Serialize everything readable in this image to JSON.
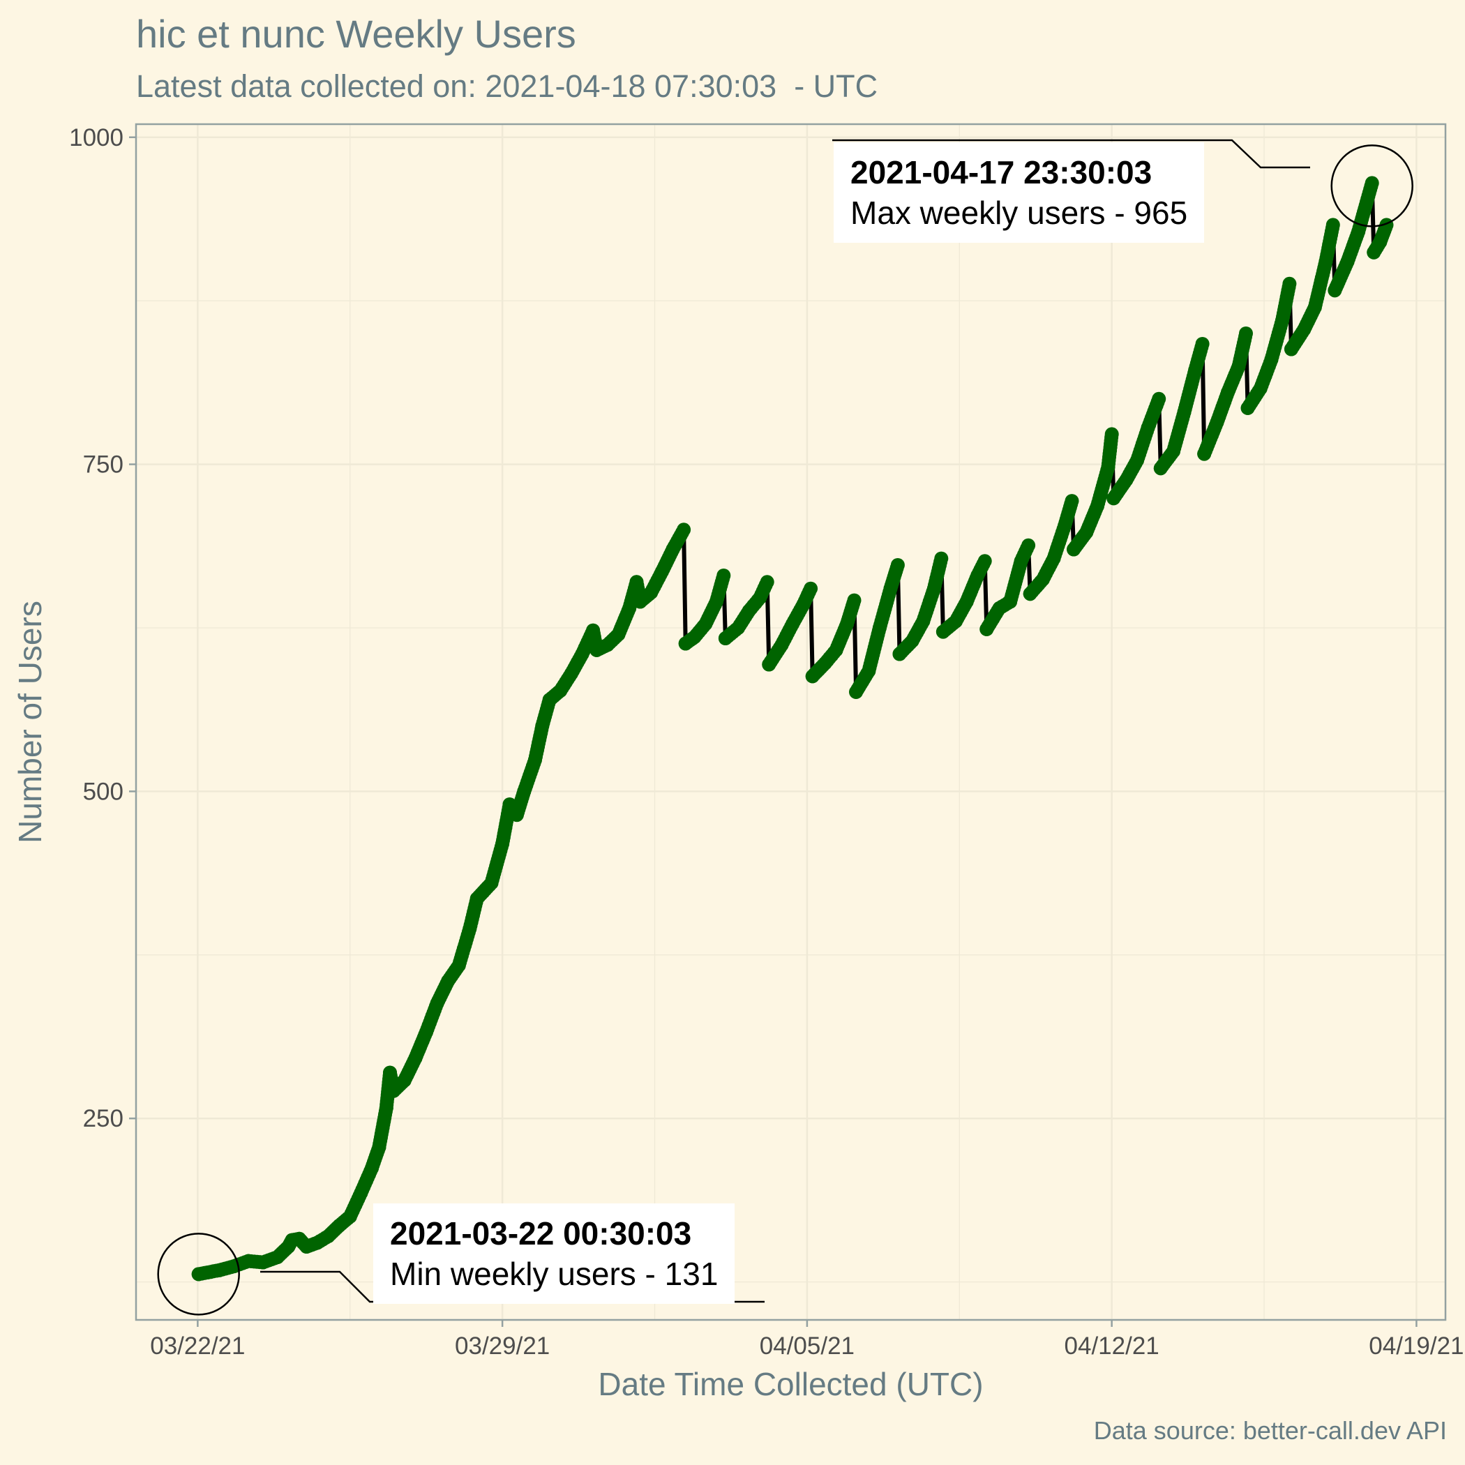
{
  "chart_data": {
    "type": "line",
    "title": "hic et nunc Weekly Users",
    "subtitle": "Latest data collected on: 2021-04-18 07:30:03  - UTC",
    "xlabel": "Date Time Collected (UTC)",
    "ylabel": "Number of Users",
    "caption": "Data source: better-call.dev API",
    "xlim": [
      "2021-03-20T14:00:00",
      "2021-04-19T16:00:00"
    ],
    "ylim": [
      96,
      1010
    ],
    "x_ticks": [
      "2021-03-22T00:00:00",
      "2021-03-29T00:00:00",
      "2021-04-05T00:00:00",
      "2021-04-12T00:00:00",
      "2021-04-19T00:00:00"
    ],
    "x_tick_labels": [
      "03/22/21",
      "03/29/21",
      "04/05/21",
      "04/12/21",
      "04/19/21"
    ],
    "y_ticks": [
      250,
      500,
      750,
      1000
    ],
    "y_tick_labels": [
      "250",
      "500",
      "750",
      "1000"
    ],
    "grid": true,
    "line_color": "#000000",
    "point_color": "#006400",
    "series": [
      {
        "points": [
          [
            "2021-03-22T00:30:03",
            131
          ],
          [
            "2021-03-22T12:00:00",
            134
          ],
          [
            "2021-03-22T20:00:00",
            137
          ],
          [
            "2021-03-23T04:00:00",
            141
          ],
          [
            "2021-03-23T12:00:00",
            140
          ],
          [
            "2021-03-23T20:00:00",
            144
          ],
          [
            "2021-03-24T02:00:00",
            152
          ],
          [
            "2021-03-24T04:00:00",
            157
          ],
          [
            "2021-03-24T08:00:00",
            158
          ],
          [
            "2021-03-24T12:00:00",
            152
          ],
          [
            "2021-03-24T18:00:00",
            155
          ],
          [
            "2021-03-25T00:00:00",
            160
          ],
          [
            "2021-03-25T06:00:00",
            168
          ],
          [
            "2021-03-25T12:00:00",
            175
          ],
          [
            "2021-03-25T18:00:00",
            193
          ],
          [
            "2021-03-26T00:00:00",
            212
          ],
          [
            "2021-03-26T04:00:00",
            228
          ],
          [
            "2021-03-26T08:00:00",
            258
          ],
          [
            "2021-03-26T10:00:00",
            285
          ],
          [
            "2021-03-26T12:00:00",
            271
          ],
          [
            "2021-03-26T18:00:00",
            279
          ],
          [
            "2021-03-27T00:00:00",
            296
          ],
          [
            "2021-03-27T06:00:00",
            316
          ],
          [
            "2021-03-27T12:00:00",
            338
          ],
          [
            "2021-03-27T18:00:00",
            355
          ],
          [
            "2021-03-28T00:00:00",
            367
          ],
          [
            "2021-03-28T06:00:00",
            395
          ],
          [
            "2021-03-28T10:00:00",
            418
          ],
          [
            "2021-03-28T18:00:00",
            430
          ],
          [
            "2021-03-29T00:00:00",
            460
          ],
          [
            "2021-03-29T04:00:00",
            490
          ],
          [
            "2021-03-29T08:00:00",
            482
          ],
          [
            "2021-03-29T12:00:00",
            500
          ],
          [
            "2021-03-29T18:00:00",
            524
          ],
          [
            "2021-03-29T22:00:00",
            550
          ],
          [
            "2021-03-30T02:00:00",
            570
          ],
          [
            "2021-03-30T08:00:00",
            577
          ],
          [
            "2021-03-30T14:00:00",
            590
          ],
          [
            "2021-03-30T20:00:00",
            605
          ],
          [
            "2021-03-31T02:00:00",
            623
          ],
          [
            "2021-03-31T04:00:00",
            608
          ],
          [
            "2021-03-31T10:00:00",
            612
          ],
          [
            "2021-03-31T16:00:00",
            620
          ],
          [
            "2021-03-31T22:00:00",
            640
          ],
          [
            "2021-04-01T02:00:00",
            660
          ],
          [
            "2021-04-01T04:00:00",
            645
          ],
          [
            "2021-04-01T10:00:00",
            652
          ],
          [
            "2021-04-01T16:00:00",
            668
          ],
          [
            "2021-04-01T22:00:00",
            685
          ],
          [
            "2021-04-02T04:00:00",
            700
          ],
          [
            "2021-04-02T05:00:00",
            613
          ],
          [
            "2021-04-02T10:00:00",
            618
          ],
          [
            "2021-04-02T16:00:00",
            628
          ],
          [
            "2021-04-02T22:00:00",
            645
          ],
          [
            "2021-04-03T02:00:00",
            665
          ],
          [
            "2021-04-03T03:00:00",
            617
          ],
          [
            "2021-04-03T10:00:00",
            625
          ],
          [
            "2021-04-03T16:00:00",
            638
          ],
          [
            "2021-04-03T22:00:00",
            648
          ],
          [
            "2021-04-04T02:00:00",
            660
          ],
          [
            "2021-04-04T03:00:00",
            597
          ],
          [
            "2021-04-04T10:00:00",
            612
          ],
          [
            "2021-04-04T16:00:00",
            628
          ],
          [
            "2021-04-04T22:00:00",
            643
          ],
          [
            "2021-04-05T02:00:00",
            655
          ],
          [
            "2021-04-05T03:00:00",
            588
          ],
          [
            "2021-04-05T10:00:00",
            598
          ],
          [
            "2021-04-05T16:00:00",
            608
          ],
          [
            "2021-04-05T22:00:00",
            628
          ],
          [
            "2021-04-06T02:00:00",
            646
          ],
          [
            "2021-04-06T03:00:00",
            576
          ],
          [
            "2021-04-06T10:00:00",
            592
          ],
          [
            "2021-04-06T16:00:00",
            625
          ],
          [
            "2021-04-06T22:00:00",
            655
          ],
          [
            "2021-04-07T02:00:00",
            673
          ],
          [
            "2021-04-07T03:00:00",
            605
          ],
          [
            "2021-04-07T10:00:00",
            615
          ],
          [
            "2021-04-07T16:00:00",
            630
          ],
          [
            "2021-04-07T22:00:00",
            655
          ],
          [
            "2021-04-08T02:00:00",
            678
          ],
          [
            "2021-04-08T03:00:00",
            622
          ],
          [
            "2021-04-08T10:00:00",
            630
          ],
          [
            "2021-04-08T16:00:00",
            645
          ],
          [
            "2021-04-08T22:00:00",
            665
          ],
          [
            "2021-04-09T02:00:00",
            676
          ],
          [
            "2021-04-09T03:00:00",
            624
          ],
          [
            "2021-04-09T10:00:00",
            640
          ],
          [
            "2021-04-09T16:00:00",
            645
          ],
          [
            "2021-04-09T22:00:00",
            676
          ],
          [
            "2021-04-10T02:00:00",
            688
          ],
          [
            "2021-04-10T03:00:00",
            651
          ],
          [
            "2021-04-10T10:00:00",
            662
          ],
          [
            "2021-04-10T16:00:00",
            678
          ],
          [
            "2021-04-10T22:00:00",
            703
          ],
          [
            "2021-04-11T02:00:00",
            722
          ],
          [
            "2021-04-11T03:00:00",
            685
          ],
          [
            "2021-04-11T10:00:00",
            698
          ],
          [
            "2021-04-11T16:00:00",
            718
          ],
          [
            "2021-04-11T22:00:00",
            748
          ],
          [
            "2021-04-12T00:00:00",
            773
          ],
          [
            "2021-04-12T01:00:00",
            724
          ],
          [
            "2021-04-12T08:00:00",
            738
          ],
          [
            "2021-04-12T14:00:00",
            753
          ],
          [
            "2021-04-12T20:00:00",
            778
          ],
          [
            "2021-04-13T02:00:00",
            800
          ],
          [
            "2021-04-13T03:00:00",
            747
          ],
          [
            "2021-04-13T10:00:00",
            760
          ],
          [
            "2021-04-13T16:00:00",
            790
          ],
          [
            "2021-04-13T22:00:00",
            822
          ],
          [
            "2021-04-14T02:00:00",
            842
          ],
          [
            "2021-04-14T03:00:00",
            758
          ],
          [
            "2021-04-14T10:00:00",
            782
          ],
          [
            "2021-04-14T16:00:00",
            805
          ],
          [
            "2021-04-14T22:00:00",
            825
          ],
          [
            "2021-04-15T02:00:00",
            850
          ],
          [
            "2021-04-15T03:00:00",
            793
          ],
          [
            "2021-04-15T10:00:00",
            808
          ],
          [
            "2021-04-15T16:00:00",
            830
          ],
          [
            "2021-04-15T22:00:00",
            860
          ],
          [
            "2021-04-16T02:00:00",
            888
          ],
          [
            "2021-04-16T03:00:00",
            838
          ],
          [
            "2021-04-16T10:00:00",
            853
          ],
          [
            "2021-04-16T16:00:00",
            870
          ],
          [
            "2021-04-16T22:00:00",
            905
          ],
          [
            "2021-04-17T02:00:00",
            933
          ],
          [
            "2021-04-17T03:00:00",
            883
          ],
          [
            "2021-04-17T10:00:00",
            905
          ],
          [
            "2021-04-17T16:00:00",
            928
          ],
          [
            "2021-04-17T23:30:03",
            965
          ],
          [
            "2021-04-18T00:30:00",
            912
          ],
          [
            "2021-04-18T04:00:00",
            920
          ],
          [
            "2021-04-18T07:30:03",
            933
          ]
        ]
      }
    ],
    "annotations": [
      {
        "title": "2021-03-22 00:30:03",
        "text": "Min weekly users - 131",
        "x": "2021-03-22T00:30:03",
        "y": 131
      },
      {
        "title": "2021-04-17 23:30:03",
        "text": "Max weekly users - 965",
        "x": "2021-04-17T23:30:03",
        "y": 965
      }
    ]
  }
}
